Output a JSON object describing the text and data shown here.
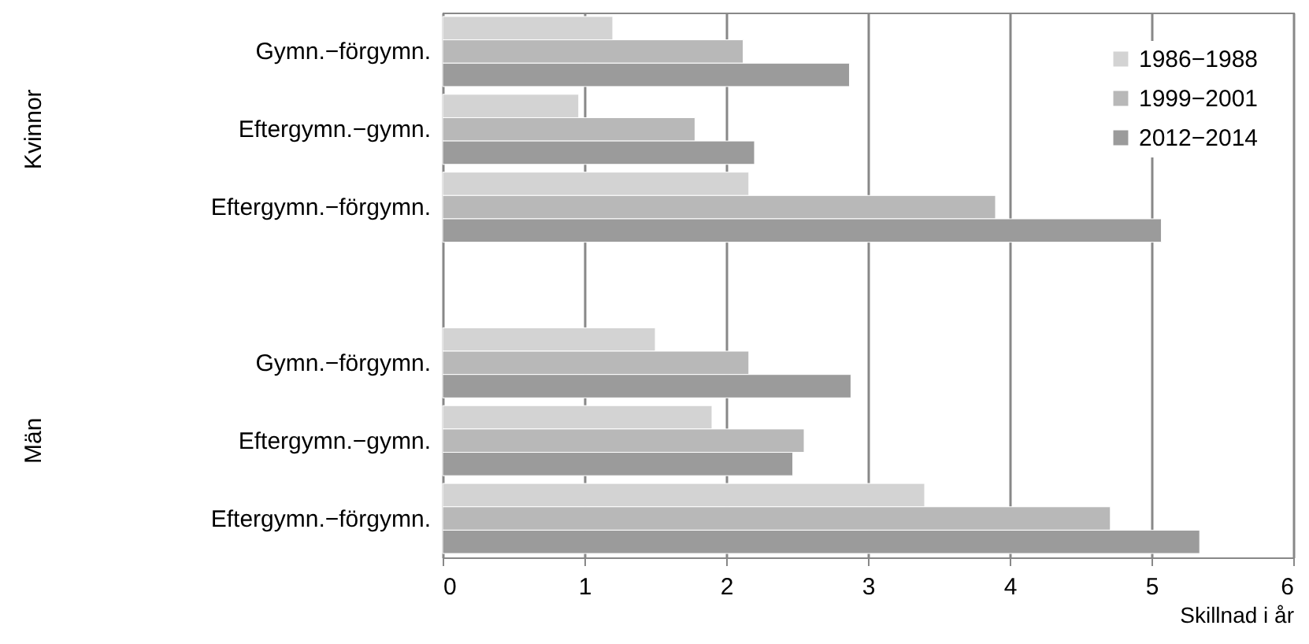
{
  "chart_data": {
    "type": "bar",
    "orientation": "horizontal",
    "categories": [
      "Gymn.−förgymn.",
      "Eftergymn.−gymn.",
      "Eftergymn.−förgymn.",
      null,
      "Gymn.−förgymn.",
      "Eftergymn.−gymn.",
      "Eftergymn.−förgymn."
    ],
    "series": [
      {
        "name": "1986−1988",
        "color": "#d3d3d3",
        "values": [
          1.2,
          0.96,
          2.16,
          null,
          1.5,
          1.9,
          3.4
        ]
      },
      {
        "name": "1999−2001",
        "color": "#b8b8b8",
        "values": [
          2.12,
          1.78,
          3.9,
          null,
          2.16,
          2.55,
          4.71
        ]
      },
      {
        "name": "2012−2014",
        "color": "#9b9b9b",
        "values": [
          2.87,
          2.2,
          5.07,
          null,
          2.88,
          2.47,
          5.34
        ]
      }
    ],
    "annotations": [
      "Kvinnor",
      "Män"
    ],
    "xlabel": "Skillnad i år",
    "xlim": [
      0,
      6
    ],
    "xticks": [
      0,
      1,
      2,
      3,
      4,
      5,
      6
    ],
    "grid": "x",
    "legend": "top right"
  }
}
